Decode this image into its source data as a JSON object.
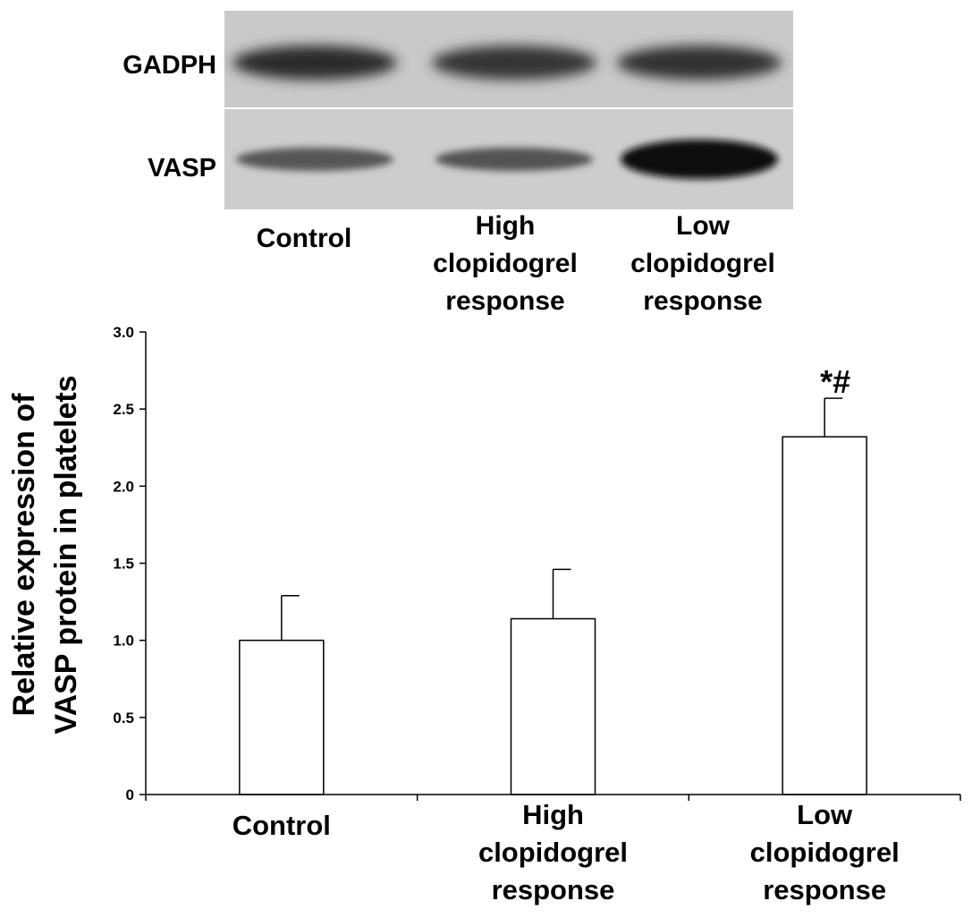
{
  "blot": {
    "rows": [
      {
        "label": "GADPH",
        "band_intensity": [
          0.82,
          0.78,
          0.8
        ]
      },
      {
        "label": "VASP",
        "band_intensity": [
          0.6,
          0.62,
          0.97
        ]
      }
    ],
    "lanes": [
      {
        "lines": [
          "Control"
        ]
      },
      {
        "lines": [
          "High",
          "clopidogrel",
          "response"
        ]
      },
      {
        "lines": [
          "Low",
          "clopidogrel",
          "response"
        ]
      }
    ]
  },
  "chart_data": {
    "type": "bar",
    "categories": [
      [
        "Control"
      ],
      [
        "High",
        "clopidogrel",
        "response"
      ],
      [
        "Low",
        "clopidogrel",
        "response"
      ]
    ],
    "values": [
      1.0,
      1.14,
      2.32
    ],
    "errors": [
      0.29,
      0.32,
      0.25
    ],
    "annotations": [
      "",
      "",
      "*#"
    ],
    "ylabel_lines": [
      "Relative expression of",
      "VASP protein in platelets"
    ],
    "ylim": [
      0,
      3.0
    ],
    "yticks": [
      {
        "value": 0,
        "label": "0"
      },
      {
        "value": 0.5,
        "label": "0.5"
      },
      {
        "value": 1.0,
        "label": "1.0"
      },
      {
        "value": 1.5,
        "label": "1.5"
      },
      {
        "value": 2.0,
        "label": "2.0"
      },
      {
        "value": 2.5,
        "label": "2.5"
      },
      {
        "value": 3.0,
        "label": "3.0"
      }
    ],
    "bar_color": "#ffffff",
    "edge_color": "#000000",
    "grid": false
  }
}
